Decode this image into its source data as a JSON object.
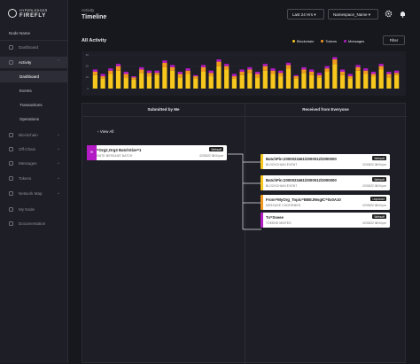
{
  "sidebar": {
    "logo": {
      "line1": "HYPERLEDGER",
      "line2": "FIREFLY"
    },
    "node_name": "Node Name",
    "nav_top": [
      "Dashboard",
      "Activity"
    ],
    "activity_sub": [
      "Dashboard",
      "Events",
      "Transactions",
      "Operations"
    ],
    "nav_bottom": [
      "Blockchain",
      "Off-Chain",
      "Messages",
      "Tokens",
      "Network Map",
      "My Node",
      "Documentation"
    ]
  },
  "header": {
    "breadcrumb": "Activity",
    "title": "Timeline",
    "time_range": "Last 24 Hrs",
    "namespace": "Namespace_Name"
  },
  "activity": {
    "title": "All Activity",
    "filter": "Filter"
  },
  "chart_data": {
    "type": "bar",
    "stacked": true,
    "ylim": [
      0,
      30
    ],
    "yticks": [
      0,
      10,
      20,
      30
    ],
    "series": [
      {
        "name": "Blockchain",
        "color": "#f7c71d",
        "values": [
          12,
          9,
          13,
          16,
          10,
          8,
          14,
          11,
          12,
          19,
          16,
          10,
          13,
          9,
          15,
          11,
          20,
          17,
          9,
          12,
          14,
          10,
          16,
          13,
          11,
          18,
          9,
          14,
          12,
          10,
          15,
          22,
          12,
          9,
          16,
          13,
          11,
          17,
          10,
          12
        ]
      },
      {
        "name": "Tokens",
        "color": "#f29a1f",
        "values": [
          3,
          2,
          3,
          4,
          3,
          2,
          3,
          3,
          2,
          4,
          3,
          3,
          3,
          2,
          4,
          3,
          4,
          3,
          2,
          3,
          3,
          3,
          4,
          3,
          3,
          3,
          2,
          3,
          3,
          2,
          3,
          4,
          3,
          2,
          3,
          3,
          2,
          3,
          3,
          2
        ]
      },
      {
        "name": "Messages",
        "color": "#b31bc4",
        "values": [
          2,
          2,
          2,
          2,
          2,
          1,
          2,
          2,
          2,
          2,
          2,
          2,
          2,
          1,
          2,
          2,
          2,
          2,
          2,
          2,
          2,
          2,
          2,
          2,
          2,
          2,
          1,
          2,
          2,
          2,
          2,
          2,
          2,
          2,
          2,
          2,
          2,
          2,
          2,
          2
        ]
      }
    ]
  },
  "timeline": {
    "columns": [
      "Submitted by Me",
      "Received from Everyone"
    ],
    "view_all": "View All",
    "submitted": [
      {
        "title": "Tx=Org2,Org3 BatchSize=1",
        "subtitle": "PRIVATE MESSAGE BATCH",
        "badge": "Websoft",
        "date": "02/03/22 08:04 pm"
      }
    ],
    "received": [
      {
        "title": "BatchPin:2000023461/2000012/2000000",
        "subtitle": "BLOCKCHAIN EVENT",
        "badge": "Websoft",
        "date": "02/03/22 08:04 pm"
      },
      {
        "title": "BatchPin:2000023461/2000012/2000000",
        "subtitle": "BLOCKCHAIN EVENT",
        "badge": "Websoft",
        "date": "02/03/22 08:04 pm"
      },
      {
        "title": "From=MyOrg_Topic=BBEJMsgIC=0x0A10",
        "subtitle": "MESSAGE CONFIRMED",
        "badge": "Unpinned",
        "date": "02/03/22 08:04 pm"
      },
      {
        "title": "Tx=Sseee",
        "subtitle": "TOKENS MINTED",
        "badge": "Websoft",
        "date": "02/03/22 08:04 pm"
      }
    ]
  }
}
